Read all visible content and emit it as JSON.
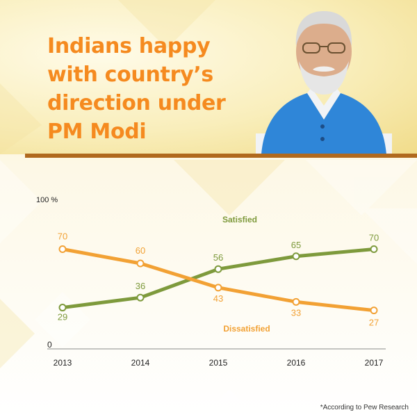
{
  "title": {
    "lines": [
      "Indians happy",
      "with country’s",
      "direction under",
      "PM Modi"
    ]
  },
  "photo": {
    "subject": "portrait-of-pm-modi"
  },
  "colors": {
    "title": "#f58a1f",
    "divider": "#b0691d",
    "satisfied": "#7e9a3c",
    "dissatisfied": "#f2a134"
  },
  "footnote": "*According to Pew Research",
  "chart_data": {
    "type": "line",
    "x": [
      "2013",
      "2014",
      "2015",
      "2016",
      "2017"
    ],
    "ylim": [
      0,
      100
    ],
    "y_ticks": [
      "0",
      "100 %"
    ],
    "series": [
      {
        "name": "Satisfied",
        "color": "#7e9a3c",
        "values": [
          29,
          36,
          56,
          65,
          70
        ],
        "labels": [
          "29",
          "36",
          "56",
          "65",
          "70"
        ]
      },
      {
        "name": "Dissatisfied",
        "color": "#f2a134",
        "values": [
          70,
          60,
          43,
          33,
          27
        ],
        "labels": [
          "70",
          "60",
          "43",
          "33",
          "27"
        ]
      }
    ]
  }
}
